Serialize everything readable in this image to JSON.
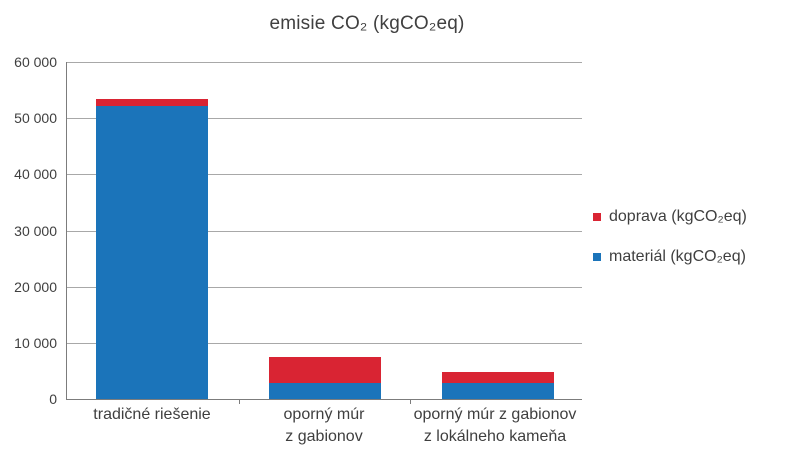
{
  "chart_data": {
    "type": "bar",
    "stacked": true,
    "title": "emisie CO₂ (kgCO₂eq)",
    "categories": [
      "tradičné riešenie",
      "oporný múr\nz gabionov",
      "oporný múr z gabionov\nz lokálneho kameňa"
    ],
    "series": [
      {
        "name": "materiál (kgCO₂eq)",
        "key": "material",
        "color": "#1b74ba",
        "values": [
          52200,
          2800,
          2800
        ]
      },
      {
        "name": "doprava (kgCO₂eq)",
        "key": "doprava",
        "color": "#d92433",
        "values": [
          1300,
          4600,
          1900
        ]
      }
    ],
    "ylim": [
      0,
      60000
    ],
    "yticks": [
      0,
      10000,
      20000,
      30000,
      40000,
      50000,
      60000
    ],
    "ytick_labels": [
      "0",
      "10 000",
      "20 000",
      "30 000",
      "40 000",
      "50 000",
      "60 000"
    ],
    "grid": true,
    "legend": {
      "position": "right",
      "items": [
        {
          "label": "doprava (kgCO₂eq)",
          "key": "doprava",
          "color": "#d92433"
        },
        {
          "label": "materiál (kgCO₂eq)",
          "key": "material",
          "color": "#1b74ba"
        }
      ]
    }
  }
}
